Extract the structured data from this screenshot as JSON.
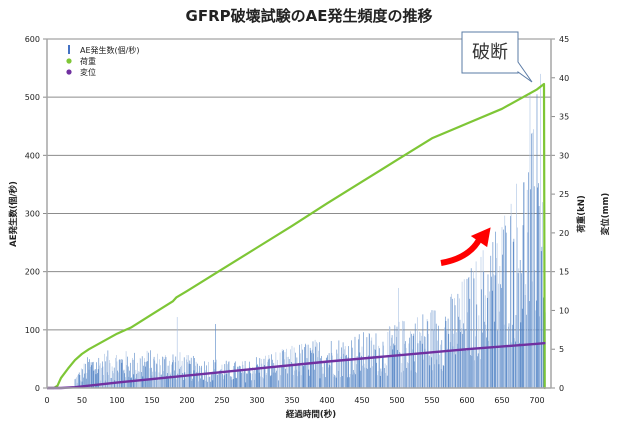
{
  "chart_data": {
    "type": "bar",
    "title": "GFRP破壊試験のAE発生頻度の推移",
    "xlabel": "経過時間(秒)",
    "ylabel": "AE発生数(個/秒)",
    "y2label_load": "荷重(kN)",
    "y2label_disp": "変位(mm)",
    "xlim": [
      0,
      720
    ],
    "ylim": [
      0,
      600
    ],
    "y2lim": [
      0,
      45
    ],
    "x_ticks": [
      "0",
      "50",
      "100",
      "150",
      "200",
      "250",
      "300",
      "350",
      "400",
      "450",
      "500",
      "550",
      "600",
      "650",
      "700"
    ],
    "y_ticks": [
      "0",
      "100",
      "200",
      "300",
      "400",
      "500",
      "600"
    ],
    "y2_ticks": [
      "0",
      "5",
      "10",
      "15",
      "20",
      "25",
      "30",
      "35",
      "40",
      "45"
    ],
    "grid": true,
    "legend_position": "top-left",
    "legend": [
      {
        "name": "AE発生数(個/秒)",
        "marker": "bar",
        "color": "#4472c4"
      },
      {
        "name": "荷重",
        "marker": "dot",
        "color": "#7ec636"
      },
      {
        "name": "変位",
        "marker": "dot",
        "color": "#7030a0"
      }
    ],
    "series": [
      {
        "name": "AE発生数(個/秒)",
        "type": "bar",
        "axis": "left",
        "color": "#4f7fc4",
        "x_start": 40,
        "x_end": 712,
        "note": "one bar per second; envelope values sampled every 20 s",
        "envelope_x": [
          40,
          60,
          80,
          100,
          120,
          140,
          160,
          180,
          200,
          220,
          240,
          260,
          280,
          300,
          320,
          340,
          360,
          380,
          400,
          420,
          440,
          460,
          480,
          500,
          520,
          540,
          560,
          580,
          600,
          620,
          640,
          660,
          680,
          700,
          712
        ],
        "envelope_y": [
          20,
          55,
          60,
          65,
          60,
          65,
          60,
          65,
          55,
          50,
          50,
          45,
          45,
          55,
          60,
          65,
          75,
          80,
          85,
          85,
          90,
          95,
          95,
          110,
          120,
          130,
          140,
          160,
          190,
          230,
          270,
          320,
          380,
          450,
          430
        ],
        "spikes": [
          {
            "x": 186,
            "y": 122
          },
          {
            "x": 241,
            "y": 110
          },
          {
            "x": 502,
            "y": 172
          },
          {
            "x": 690,
            "y": 505
          },
          {
            "x": 700,
            "y": 505
          },
          {
            "x": 705,
            "y": 540
          },
          {
            "x": 710,
            "y": 440
          }
        ]
      },
      {
        "name": "荷重",
        "type": "line",
        "axis": "right",
        "unit": "kN",
        "color": "#7ec636",
        "x": [
          0,
          10,
          15,
          20,
          30,
          40,
          50,
          60,
          80,
          100,
          120,
          150,
          180,
          185,
          200,
          250,
          300,
          350,
          400,
          450,
          500,
          550,
          600,
          650,
          700,
          710,
          711,
          712
        ],
        "y": [
          0,
          0,
          0.3,
          1.3,
          2.5,
          3.6,
          4.4,
          5.0,
          6.0,
          7.0,
          7.8,
          9.5,
          11.2,
          11.7,
          12.5,
          15.3,
          18.1,
          20.9,
          23.8,
          26.6,
          29.4,
          32.2,
          34.1,
          36.0,
          38.5,
          39.2,
          0,
          0
        ]
      },
      {
        "name": "変位",
        "type": "line",
        "axis": "right",
        "unit": "mm",
        "color": "#7030a0",
        "x": [
          0,
          20,
          40,
          100,
          200,
          300,
          400,
          500,
          600,
          700,
          712
        ],
        "y": [
          0,
          0,
          0.1,
          0.7,
          1.6,
          2.5,
          3.4,
          4.2,
          5.0,
          5.7,
          5.8
        ]
      }
    ],
    "annotations": [
      {
        "type": "callout",
        "text": "破断",
        "points_to": {
          "x": 705,
          "y2": 40
        }
      },
      {
        "type": "arrow",
        "color": "#ff0000",
        "direction": "up-right",
        "meaning": "increasing AE frequency"
      }
    ]
  }
}
